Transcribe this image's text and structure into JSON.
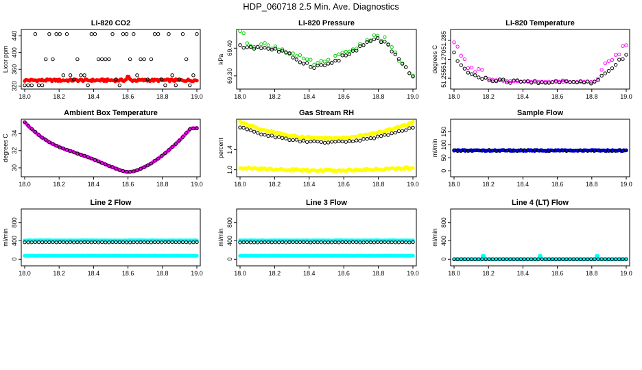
{
  "figure_title": "HDP_060718  2.5 Min. Ave. Diagnostics",
  "colors": {
    "axis": "#000000",
    "red": "#ff0000",
    "green": "#00cc00",
    "magenta": "#ff00ff",
    "yellow": "#ffff00",
    "blue": "#0000ff",
    "cyan": "#00ffff",
    "black": "#000000"
  },
  "chart_data": [
    {
      "id": "co2",
      "type": "scatter",
      "title": "Li-820 CO2",
      "ylabel": "Licor ppm",
      "xlim": [
        18.0,
        19.0
      ],
      "ylim": [
        318,
        450
      ],
      "xticks": [
        "18.0",
        "18.2",
        "18.4",
        "18.6",
        "18.8",
        "19.0"
      ],
      "yticks": [
        {
          "v": 320,
          "label": "320"
        },
        {
          "v": 360,
          "label": "360"
        },
        {
          "v": 400,
          "label": "400"
        },
        {
          "v": 440,
          "label": "440"
        }
      ],
      "series": [
        {
          "name": "fast",
          "marker": "filled",
          "color": "red",
          "kind": "co2"
        },
        {
          "name": "avg",
          "marker": "open",
          "color": "black",
          "kind": "co2avg"
        }
      ]
    },
    {
      "id": "pressure",
      "type": "scatter",
      "title": "Li-820 Pressure",
      "ylabel": "kPa",
      "xlim": [
        18.0,
        19.0
      ],
      "ylim": [
        69.26,
        69.46
      ],
      "xticks": [
        "18.0",
        "18.2",
        "18.4",
        "18.6",
        "18.8",
        "19.0"
      ],
      "yticks": [
        {
          "v": 69.3,
          "label": "69.30"
        },
        {
          "v": 69.4,
          "label": "69.40"
        }
      ],
      "series": [
        {
          "name": "fast",
          "marker": "open",
          "color": "green",
          "kind": "pressure"
        },
        {
          "name": "avg",
          "marker": "open",
          "color": "black",
          "kind": "pressureavg"
        }
      ]
    },
    {
      "id": "ltemp",
      "type": "scatter",
      "title": "Li-820 Temperature",
      "ylabel": "degrees C",
      "xlim": [
        18.0,
        19.0
      ],
      "ylim": [
        51.248,
        51.292
      ],
      "xticks": [
        "18.0",
        "18.2",
        "18.4",
        "18.6",
        "18.8",
        "19.0"
      ],
      "yticks": [
        {
          "v": 51.255,
          "label": "51.255"
        },
        {
          "v": 51.27,
          "label": "51.270"
        },
        {
          "v": 51.285,
          "label": "51.285"
        }
      ],
      "series": [
        {
          "name": "fast",
          "marker": "open",
          "color": "magenta",
          "kind": "ltemp"
        },
        {
          "name": "avg",
          "marker": "open",
          "color": "black",
          "kind": "ltempavg"
        }
      ]
    },
    {
      "id": "boxtemp",
      "type": "scatter",
      "title": "Ambient Box Temperature",
      "ylabel": "degrees C",
      "xlim": [
        18.0,
        19.0
      ],
      "ylim": [
        29.2,
        35.4
      ],
      "xticks": [
        "18.0",
        "18.2",
        "18.4",
        "18.6",
        "18.8",
        "19.0"
      ],
      "yticks": [
        {
          "v": 30,
          "label": "30"
        },
        {
          "v": 32,
          "label": "32"
        },
        {
          "v": 34,
          "label": "34"
        }
      ],
      "series": [
        {
          "name": "fast",
          "marker": "filled",
          "color": "magenta",
          "kind": "boxtemp"
        },
        {
          "name": "avg",
          "marker": "open",
          "color": "black",
          "kind": "boxtemp"
        }
      ]
    },
    {
      "id": "rh",
      "type": "scatter",
      "title": "Gas Stream RH",
      "ylabel": "percent",
      "xlim": [
        18.0,
        19.0
      ],
      "ylim": [
        0.9,
        1.97
      ],
      "xticks": [
        "18.0",
        "18.2",
        "18.4",
        "18.6",
        "18.8",
        "19.0"
      ],
      "yticks": [
        {
          "v": 1.0,
          "label": "1.0"
        },
        {
          "v": 1.4,
          "label": "1.4"
        }
      ],
      "series": [
        {
          "name": "upper",
          "marker": "filled",
          "color": "yellow",
          "kind": "rhhigh"
        },
        {
          "name": "lower",
          "marker": "filled",
          "color": "yellow",
          "kind": "rhlow"
        },
        {
          "name": "avg",
          "marker": "open",
          "color": "black",
          "kind": "rhavg"
        }
      ]
    },
    {
      "id": "sampleflow",
      "type": "scatter",
      "title": "Sample Flow",
      "ylabel": "ml/min",
      "xlim": [
        18.0,
        19.0
      ],
      "ylim": [
        -15,
        190
      ],
      "xticks": [
        "18.0",
        "18.2",
        "18.4",
        "18.6",
        "18.8",
        "19.0"
      ],
      "yticks": [
        {
          "v": 0,
          "label": "0"
        },
        {
          "v": 50,
          "label": "50"
        },
        {
          "v": 100,
          "label": "100"
        },
        {
          "v": 150,
          "label": "150"
        }
      ],
      "series": [
        {
          "name": "fast",
          "marker": "filled",
          "color": "blue",
          "kind": "const",
          "value": 78
        },
        {
          "name": "avg",
          "marker": "open",
          "color": "black",
          "kind": "const",
          "value": 78
        }
      ]
    },
    {
      "id": "line2",
      "type": "scatter",
      "title": "Line 2 Flow",
      "ylabel": "ml/min",
      "xlim": [
        18.0,
        19.0
      ],
      "ylim": [
        -100,
        1050
      ],
      "xticks": [
        "18.0",
        "18.2",
        "18.4",
        "18.6",
        "18.8",
        "19.0"
      ],
      "yticks": [
        {
          "v": 0,
          "label": "0"
        },
        {
          "v": 400,
          "label": "400"
        },
        {
          "v": 800,
          "label": "800"
        }
      ],
      "series": [
        {
          "name": "high",
          "marker": "filled",
          "color": "cyan",
          "kind": "const",
          "value": 410
        },
        {
          "name": "low",
          "marker": "filled",
          "color": "cyan",
          "kind": "const",
          "value": 75
        },
        {
          "name": "avg",
          "marker": "open",
          "color": "black",
          "kind": "const",
          "value": 370
        }
      ]
    },
    {
      "id": "line3",
      "type": "scatter",
      "title": "Line 3 Flow",
      "ylabel": "ml/min",
      "xlim": [
        18.0,
        19.0
      ],
      "ylim": [
        -100,
        1050
      ],
      "xticks": [
        "18.0",
        "18.2",
        "18.4",
        "18.6",
        "18.8",
        "19.0"
      ],
      "yticks": [
        {
          "v": 0,
          "label": "0"
        },
        {
          "v": 400,
          "label": "400"
        },
        {
          "v": 800,
          "label": "800"
        }
      ],
      "series": [
        {
          "name": "high",
          "marker": "filled",
          "color": "cyan",
          "kind": "const",
          "value": 410
        },
        {
          "name": "low",
          "marker": "filled",
          "color": "cyan",
          "kind": "const",
          "value": 75
        },
        {
          "name": "avg",
          "marker": "open",
          "color": "black",
          "kind": "const",
          "value": 370
        }
      ]
    },
    {
      "id": "line4",
      "type": "scatter",
      "title": "Line 4 (LT) Flow",
      "ylabel": "ml/min",
      "xlim": [
        18.0,
        19.0
      ],
      "ylim": [
        -100,
        1050
      ],
      "xticks": [
        "18.0",
        "18.2",
        "18.4",
        "18.6",
        "18.8",
        "19.0"
      ],
      "yticks": [
        {
          "v": 0,
          "label": "0"
        },
        {
          "v": 400,
          "label": "400"
        },
        {
          "v": 800,
          "label": "800"
        }
      ],
      "series": [
        {
          "name": "fast",
          "marker": "filled",
          "color": "cyan",
          "kind": "line4"
        },
        {
          "name": "avg",
          "marker": "open",
          "color": "black",
          "kind": "const",
          "value": 0
        }
      ]
    }
  ]
}
